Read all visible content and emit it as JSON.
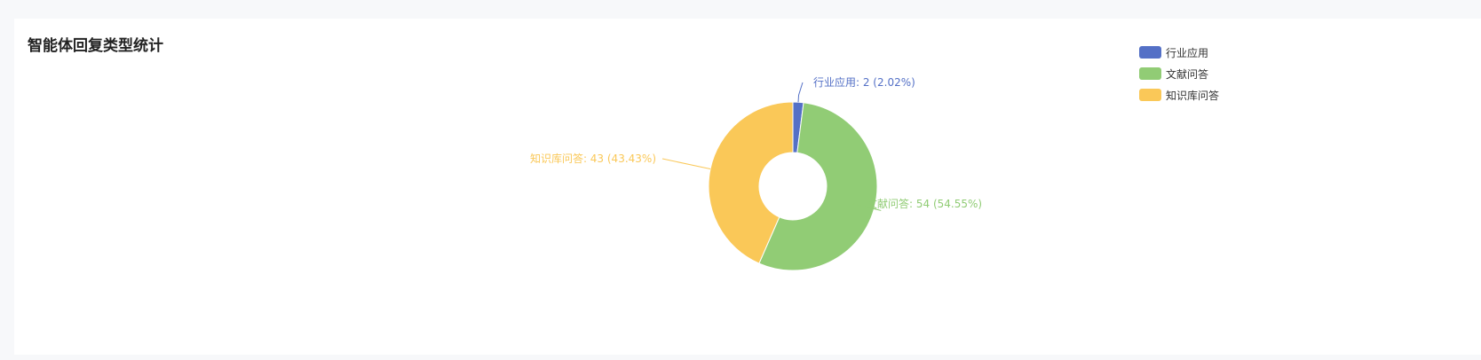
{
  "chart_data": {
    "type": "pie",
    "variant": "donut",
    "title": "智能体回复类型统计",
    "legend_position": "top-right",
    "slices": [
      {
        "name": "行业应用",
        "value": 2,
        "percent": 2.02,
        "color": "#5470c6",
        "label": "行业应用: 2 (2.02%)"
      },
      {
        "name": "文献问答",
        "value": 54,
        "percent": 54.55,
        "color": "#91cc75",
        "label": "文献问答: 54 (54.55%)"
      },
      {
        "name": "知识库问答",
        "value": 43,
        "percent": 43.43,
        "color": "#fac858",
        "label": "知识库问答: 43 (43.43%)"
      }
    ]
  }
}
